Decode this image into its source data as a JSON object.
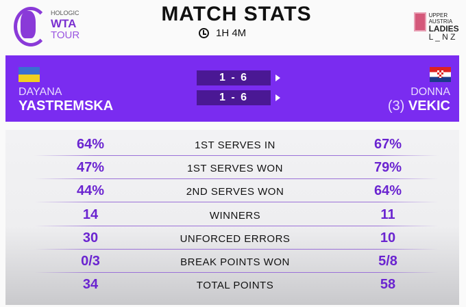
{
  "header": {
    "logo": {
      "sponsor": "HOLOGIC",
      "brand": "WTA",
      "sub": "TOUR"
    },
    "title": "MATCH STATS",
    "duration": "1H 4M",
    "tournament": {
      "line1": "UPPER AUSTRIA",
      "line2": "LADIES",
      "line3": "L _ N Z"
    }
  },
  "players": {
    "left": {
      "first": "DAYANA",
      "last": "YASTREMSKA",
      "seed": "",
      "flag": "Ukraine"
    },
    "right": {
      "first": "DONNA",
      "last": "VEKIC",
      "seed": "(3)",
      "flag": "Croatia"
    }
  },
  "sets": [
    "1 - 6",
    "1 - 6"
  ],
  "colors": {
    "accent": "#7a2cf0",
    "score_box": "#4a1894",
    "value": "#6a24d0"
  },
  "stats": [
    {
      "label": "1ST SERVES IN",
      "left": "64%",
      "right": "67%"
    },
    {
      "label": "1ST SERVES WON",
      "left": "47%",
      "right": "79%"
    },
    {
      "label": "2ND SERVES WON",
      "left": "44%",
      "right": "64%"
    },
    {
      "label": "WINNERS",
      "left": "14",
      "right": "11"
    },
    {
      "label": "UNFORCED ERRORS",
      "left": "30",
      "right": "10"
    },
    {
      "label": "BREAK POINTS WON",
      "left": "0/3",
      "right": "5/8"
    },
    {
      "label": "TOTAL POINTS",
      "left": "34",
      "right": "58"
    }
  ]
}
